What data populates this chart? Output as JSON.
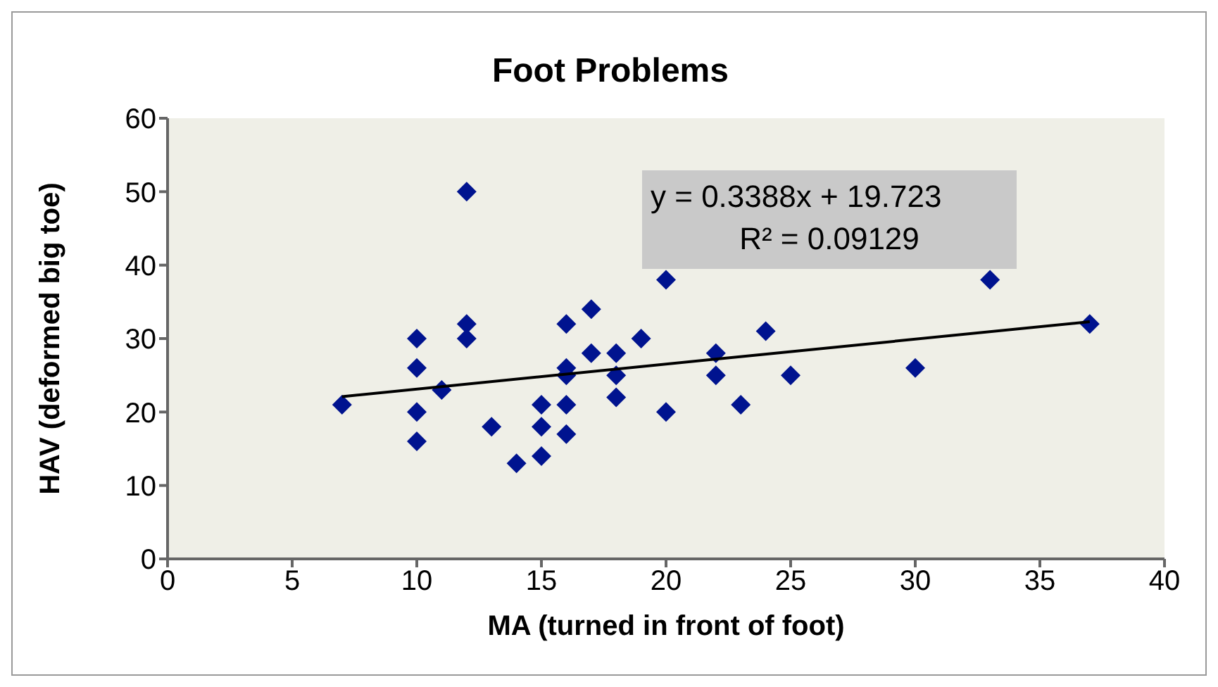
{
  "chart_data": {
    "type": "scatter",
    "title": "Foot Problems",
    "xlabel": "MA (turned in front of foot)",
    "ylabel": "HAV (deformed big toe)",
    "xlim": [
      0,
      40
    ],
    "xticks": [
      0,
      5,
      10,
      15,
      20,
      25,
      30,
      35,
      40
    ],
    "ylim": [
      0,
      60
    ],
    "yticks": [
      0,
      10,
      20,
      30,
      40,
      50,
      60
    ],
    "grid": false,
    "marker": "diamond",
    "series": [
      {
        "color": "#00138f",
        "x": [
          7,
          10,
          10,
          10,
          10,
          11,
          12,
          12,
          12,
          13,
          14,
          15,
          15,
          15,
          16,
          16,
          16,
          16,
          16,
          17,
          17,
          18,
          18,
          18,
          19,
          20,
          20,
          22,
          22,
          23,
          24,
          25,
          30,
          33,
          37
        ],
        "values": [
          21,
          30,
          26,
          20,
          16,
          23,
          50,
          32,
          30,
          18,
          13,
          21,
          18,
          14,
          32,
          26,
          25,
          21,
          17,
          34,
          28,
          28,
          25,
          22,
          30,
          38,
          20,
          28,
          25,
          21,
          31,
          25,
          26,
          38,
          32
        ]
      },
      {
        "type": "line",
        "color": "#000000",
        "marker": "none",
        "line_style": "solid",
        "x": [
          7,
          37
        ],
        "values": [
          22.1,
          32.3
        ]
      }
    ],
    "annotations": [
      "y = 0.3388x + 19.723",
      "R² = 0.09129"
    ]
  }
}
